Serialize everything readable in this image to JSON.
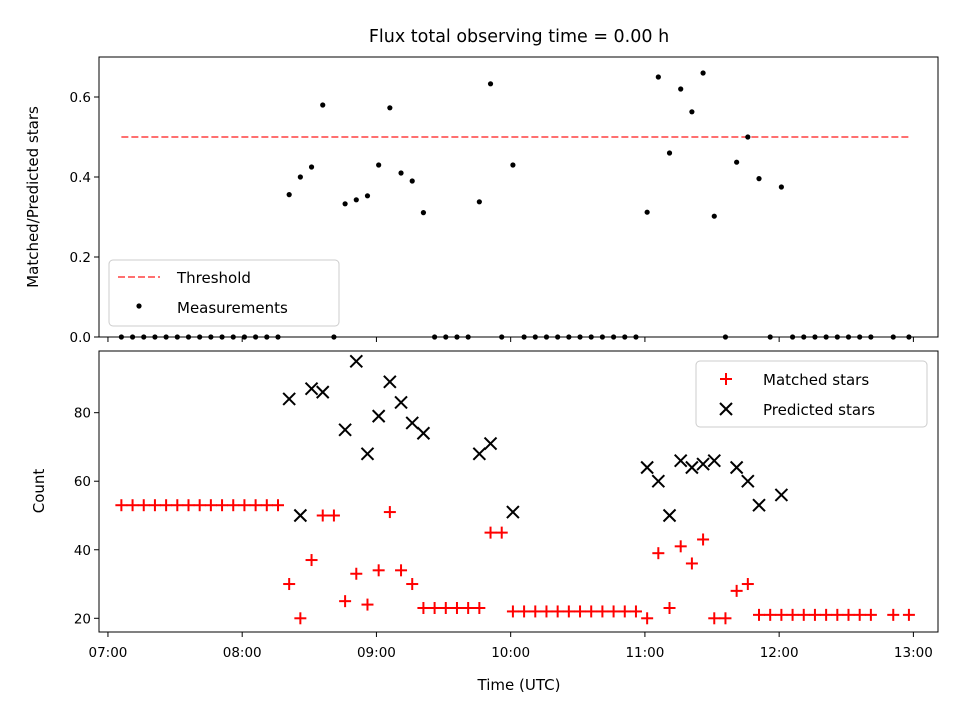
{
  "chart_data": [
    {
      "type": "scatter",
      "title": "Flux total observing time = 0.00 h",
      "xlabel": "",
      "ylabel": "Matched/Predicted stars",
      "xlim": [
        "06:56",
        "13:11"
      ],
      "ylim": [
        0,
        0.7
      ],
      "yticks": [
        0.0,
        0.2,
        0.4,
        0.6
      ],
      "ytick_labels": [
        "0.0",
        "0.2",
        "0.4",
        "0.6"
      ],
      "grid": false,
      "legend": {
        "placement": "lower-left",
        "entries": [
          "Threshold",
          "Measurements"
        ]
      },
      "threshold": {
        "name": "Threshold",
        "value": 0.5,
        "x_start": "07:06",
        "x_end": "12:58",
        "color": "#ff7070",
        "style": "dashed"
      },
      "series": [
        {
          "name": "Measurements",
          "color": "#000000",
          "points": [
            [
              "07:06",
              0.0
            ],
            [
              "07:11",
              0.0
            ],
            [
              "07:16",
              0.0
            ],
            [
              "07:21",
              0.0
            ],
            [
              "07:26",
              0.0
            ],
            [
              "07:31",
              0.0
            ],
            [
              "07:36",
              0.0
            ],
            [
              "07:41",
              0.0
            ],
            [
              "07:46",
              0.0
            ],
            [
              "07:51",
              0.0
            ],
            [
              "07:56",
              0.0
            ],
            [
              "08:01",
              0.0
            ],
            [
              "08:06",
              0.0
            ],
            [
              "08:11",
              0.0
            ],
            [
              "08:16",
              0.0
            ],
            [
              "08:21",
              0.356
            ],
            [
              "08:26",
              0.4
            ],
            [
              "08:31",
              0.425
            ],
            [
              "08:36",
              0.58
            ],
            [
              "08:41",
              0.0
            ],
            [
              "08:46",
              0.333
            ],
            [
              "08:51",
              0.343
            ],
            [
              "08:56",
              0.353
            ],
            [
              "09:01",
              0.43
            ],
            [
              "09:06",
              0.573
            ],
            [
              "09:11",
              0.41
            ],
            [
              "09:16",
              0.39
            ],
            [
              "09:21",
              0.311
            ],
            [
              "09:26",
              0.0
            ],
            [
              "09:31",
              0.0
            ],
            [
              "09:36",
              0.0
            ],
            [
              "09:41",
              0.0
            ],
            [
              "09:46",
              0.338
            ],
            [
              "09:51",
              0.633
            ],
            [
              "09:56",
              0.0
            ],
            [
              "10:01",
              0.43
            ],
            [
              "10:06",
              0.0
            ],
            [
              "10:11",
              0.0
            ],
            [
              "10:16",
              0.0
            ],
            [
              "10:21",
              0.0
            ],
            [
              "10:26",
              0.0
            ],
            [
              "10:31",
              0.0
            ],
            [
              "10:36",
              0.0
            ],
            [
              "10:41",
              0.0
            ],
            [
              "10:46",
              0.0
            ],
            [
              "10:51",
              0.0
            ],
            [
              "10:56",
              0.0
            ],
            [
              "11:01",
              0.312
            ],
            [
              "11:06",
              0.65
            ],
            [
              "11:11",
              0.46
            ],
            [
              "11:16",
              0.62
            ],
            [
              "11:21",
              0.563
            ],
            [
              "11:26",
              0.66
            ],
            [
              "11:31",
              0.302
            ],
            [
              "11:36",
              0.0
            ],
            [
              "11:41",
              0.437
            ],
            [
              "11:46",
              0.5
            ],
            [
              "11:51",
              0.396
            ],
            [
              "11:56",
              0.0
            ],
            [
              "12:01",
              0.375
            ],
            [
              "12:06",
              0.0
            ],
            [
              "12:11",
              0.0
            ],
            [
              "12:16",
              0.0
            ],
            [
              "12:21",
              0.0
            ],
            [
              "12:26",
              0.0
            ],
            [
              "12:31",
              0.0
            ],
            [
              "12:36",
              0.0
            ],
            [
              "12:41",
              0.0
            ],
            [
              "12:51",
              0.0
            ],
            [
              "12:58",
              0.0
            ]
          ]
        }
      ]
    },
    {
      "type": "scatter",
      "title": "",
      "xlabel": "Time (UTC)",
      "ylabel": "Count",
      "xlim": [
        "06:56",
        "13:11"
      ],
      "ylim": [
        16,
        98
      ],
      "xticks": [
        "07:00",
        "08:00",
        "09:00",
        "10:00",
        "11:00",
        "12:00",
        "13:00"
      ],
      "xtick_labels": [
        "07:00",
        "08:00",
        "09:00",
        "10:00",
        "11:00",
        "12:00",
        "13:00"
      ],
      "yticks": [
        20,
        40,
        60,
        80
      ],
      "ytick_labels": [
        "20",
        "40",
        "60",
        "80"
      ],
      "grid": false,
      "legend": {
        "placement": "top-right",
        "entries": [
          "Matched stars",
          "Predicted stars"
        ]
      },
      "series": [
        {
          "name": "Matched stars",
          "marker": "plus",
          "color": "#ff0000",
          "points": [
            [
              "07:06",
              53
            ],
            [
              "07:11",
              53
            ],
            [
              "07:16",
              53
            ],
            [
              "07:21",
              53
            ],
            [
              "07:26",
              53
            ],
            [
              "07:31",
              53
            ],
            [
              "07:36",
              53
            ],
            [
              "07:41",
              53
            ],
            [
              "07:46",
              53
            ],
            [
              "07:51",
              53
            ],
            [
              "07:56",
              53
            ],
            [
              "08:01",
              53
            ],
            [
              "08:06",
              53
            ],
            [
              "08:11",
              53
            ],
            [
              "08:16",
              53
            ],
            [
              "08:21",
              30
            ],
            [
              "08:26",
              20
            ],
            [
              "08:31",
              37
            ],
            [
              "08:36",
              50
            ],
            [
              "08:41",
              50
            ],
            [
              "08:46",
              25
            ],
            [
              "08:51",
              33
            ],
            [
              "08:56",
              24
            ],
            [
              "09:01",
              34
            ],
            [
              "09:06",
              51
            ],
            [
              "09:11",
              34
            ],
            [
              "09:16",
              30
            ],
            [
              "09:21",
              23
            ],
            [
              "09:26",
              23
            ],
            [
              "09:31",
              23
            ],
            [
              "09:36",
              23
            ],
            [
              "09:41",
              23
            ],
            [
              "09:46",
              23
            ],
            [
              "09:51",
              45
            ],
            [
              "09:56",
              45
            ],
            [
              "10:01",
              22
            ],
            [
              "10:06",
              22
            ],
            [
              "10:11",
              22
            ],
            [
              "10:16",
              22
            ],
            [
              "10:21",
              22
            ],
            [
              "10:26",
              22
            ],
            [
              "10:31",
              22
            ],
            [
              "10:36",
              22
            ],
            [
              "10:41",
              22
            ],
            [
              "10:46",
              22
            ],
            [
              "10:51",
              22
            ],
            [
              "10:56",
              22
            ],
            [
              "11:01",
              20
            ],
            [
              "11:06",
              39
            ],
            [
              "11:11",
              23
            ],
            [
              "11:16",
              41
            ],
            [
              "11:21",
              36
            ],
            [
              "11:26",
              43
            ],
            [
              "11:31",
              20
            ],
            [
              "11:36",
              20
            ],
            [
              "11:41",
              28
            ],
            [
              "11:46",
              30
            ],
            [
              "11:51",
              21
            ],
            [
              "11:56",
              21
            ],
            [
              "12:01",
              21
            ],
            [
              "12:06",
              21
            ],
            [
              "12:11",
              21
            ],
            [
              "12:16",
              21
            ],
            [
              "12:21",
              21
            ],
            [
              "12:26",
              21
            ],
            [
              "12:31",
              21
            ],
            [
              "12:36",
              21
            ],
            [
              "12:41",
              21
            ],
            [
              "12:51",
              21
            ],
            [
              "12:58",
              21
            ]
          ]
        },
        {
          "name": "Predicted stars",
          "marker": "x",
          "color": "#000000",
          "points": [
            [
              "08:21",
              84
            ],
            [
              "08:26",
              50
            ],
            [
              "08:31",
              87
            ],
            [
              "08:36",
              86
            ],
            [
              "08:46",
              75
            ],
            [
              "08:51",
              95
            ],
            [
              "08:56",
              68
            ],
            [
              "09:01",
              79
            ],
            [
              "09:06",
              89
            ],
            [
              "09:11",
              83
            ],
            [
              "09:16",
              77
            ],
            [
              "09:21",
              74
            ],
            [
              "09:46",
              68
            ],
            [
              "09:51",
              71
            ],
            [
              "10:01",
              51
            ],
            [
              "11:01",
              64
            ],
            [
              "11:06",
              60
            ],
            [
              "11:11",
              50
            ],
            [
              "11:16",
              66
            ],
            [
              "11:21",
              64
            ],
            [
              "11:26",
              65
            ],
            [
              "11:31",
              66
            ],
            [
              "11:41",
              64
            ],
            [
              "11:46",
              60
            ],
            [
              "11:51",
              53
            ],
            [
              "12:01",
              56
            ]
          ]
        }
      ]
    }
  ]
}
